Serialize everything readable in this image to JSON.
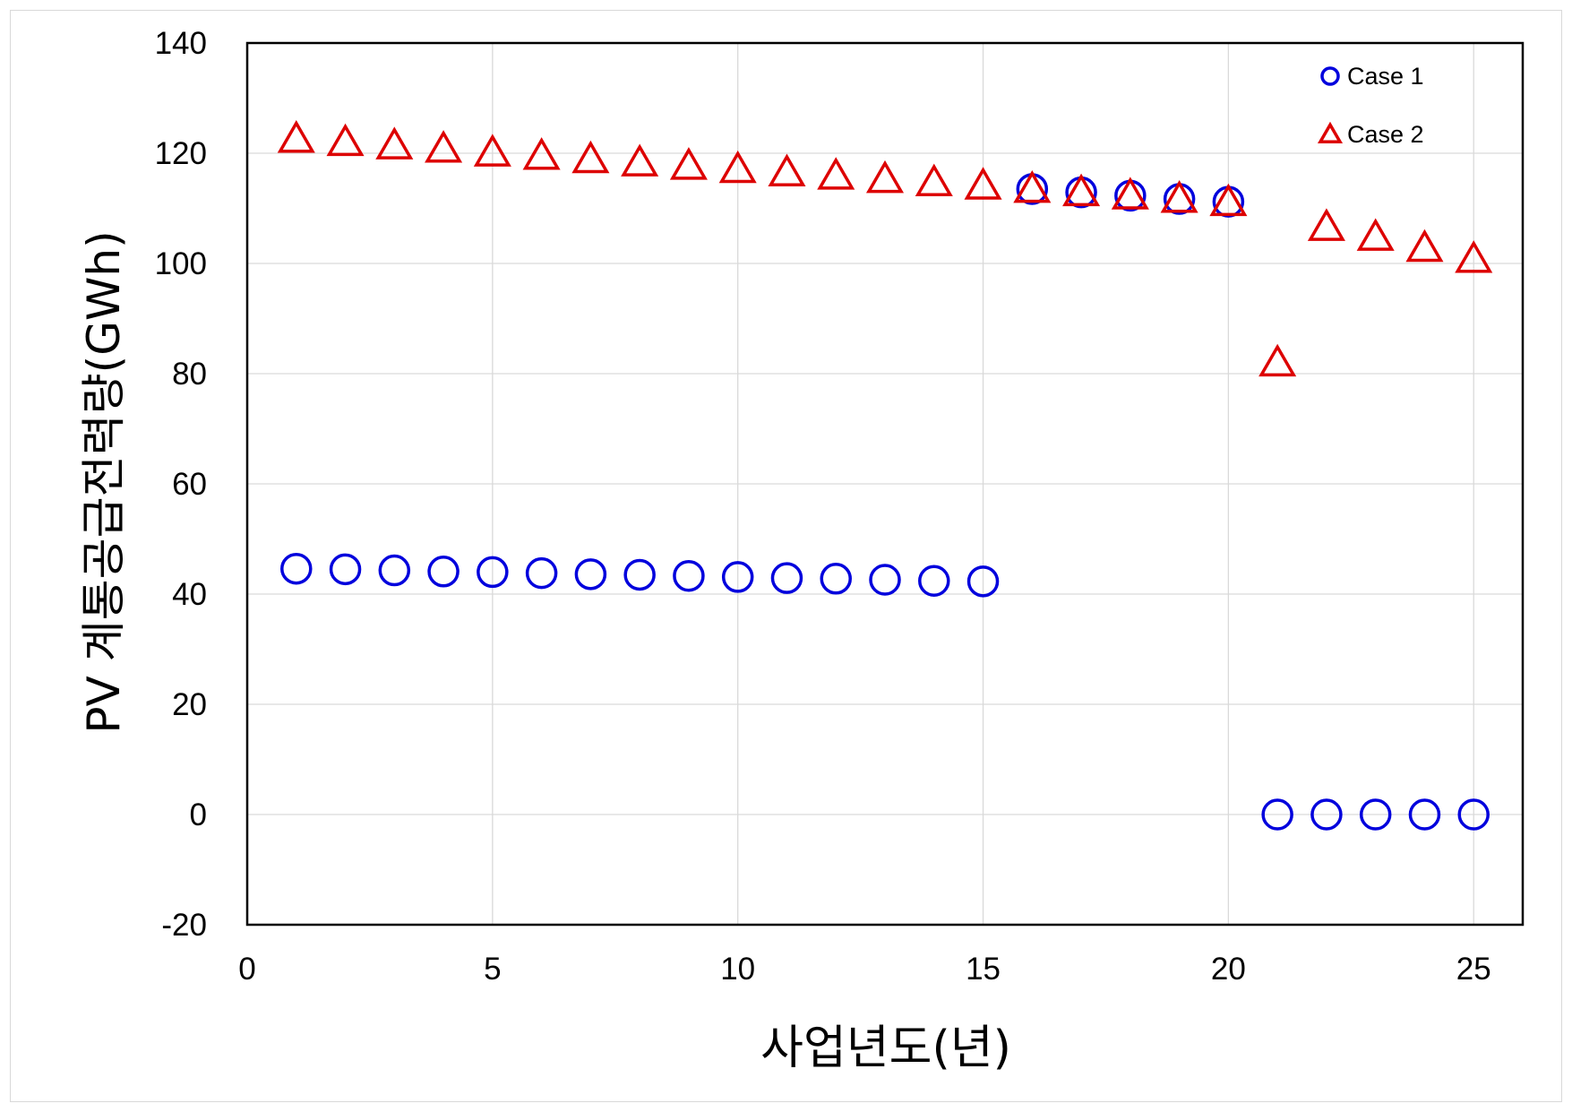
{
  "chart_data": {
    "type": "scatter",
    "title": "",
    "xlabel": "사업년도(년)",
    "ylabel": "PV 계통공급전력량(GWh)",
    "xlim": [
      0,
      26
    ],
    "ylim": [
      -20,
      140
    ],
    "x_ticks": [
      "0",
      "5",
      "10",
      "15",
      "20",
      "25"
    ],
    "y_ticks": [
      "140",
      "120",
      "100",
      "80",
      "60",
      "40",
      "20",
      "0",
      "-20"
    ],
    "negative_tick_color": "#e00000",
    "grid": true,
    "legend_position": "top-right",
    "series": [
      {
        "name": "Case 1",
        "marker": "circle",
        "color": "#0000dd",
        "x": [
          1,
          2,
          3,
          4,
          5,
          6,
          7,
          8,
          9,
          10,
          11,
          12,
          13,
          14,
          15,
          16,
          17,
          18,
          19,
          20,
          21,
          22,
          23,
          24,
          25
        ],
        "y": [
          44.6,
          44.5,
          44.3,
          44.1,
          44.0,
          43.8,
          43.6,
          43.5,
          43.3,
          43.1,
          42.9,
          42.8,
          42.6,
          42.4,
          42.3,
          113.5,
          112.9,
          112.3,
          111.7,
          111.2,
          0,
          0,
          0,
          0,
          0
        ]
      },
      {
        "name": "Case 2",
        "marker": "triangle",
        "color": "#dd0000",
        "x": [
          1,
          2,
          3,
          4,
          5,
          6,
          7,
          8,
          9,
          10,
          11,
          12,
          13,
          14,
          15,
          16,
          17,
          18,
          19,
          20,
          21,
          22,
          23,
          24,
          25
        ],
        "y": [
          122.3,
          121.7,
          121.1,
          120.5,
          119.8,
          119.2,
          118.6,
          118.0,
          117.4,
          116.8,
          116.2,
          115.6,
          115.0,
          114.4,
          113.8,
          113.2,
          112.6,
          112.0,
          111.4,
          110.8,
          81.7,
          106.3,
          104.5,
          102.5,
          100.5
        ]
      }
    ]
  }
}
